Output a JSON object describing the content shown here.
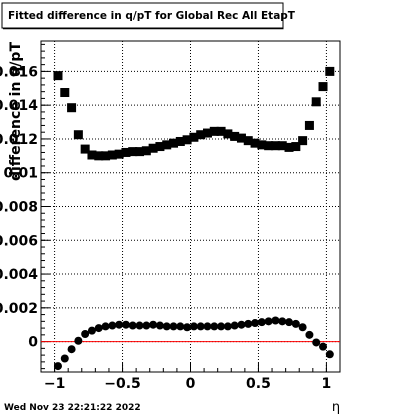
{
  "chart_data": {
    "type": "scatter",
    "title": "Fitted difference in q/pT for Global Rec All EtapT",
    "xlabel": "η",
    "ylabel": "difference in q/pT",
    "timestamp": "Wed Nov 23 22:21:22 2022",
    "xlim": [
      -1.1,
      1.1
    ],
    "ylim": [
      -0.0018,
      0.0178
    ],
    "x_ticks": [
      -1,
      -0.5,
      0,
      0.5,
      1
    ],
    "x_tick_labels": [
      "−1",
      "−0.5",
      "0",
      "0.5",
      "1"
    ],
    "y_ticks": [
      0,
      0.002,
      0.004,
      0.006,
      0.008,
      0.01,
      0.012,
      0.014,
      0.016
    ],
    "y_tick_labels": [
      "0",
      "0.002",
      "0.004",
      "0.006",
      "0.008",
      "0.01",
      "0.012",
      "0.014",
      "0.016"
    ],
    "grid": true,
    "reference_line": {
      "y": 0,
      "color": "#ff0000"
    },
    "series": [
      {
        "marker": "square",
        "color": "#000000",
        "points": [
          [
            -0.975,
            0.01575
          ],
          [
            -0.925,
            0.01475
          ],
          [
            -0.875,
            0.01385
          ],
          [
            -0.825,
            0.01225
          ],
          [
            -0.775,
            0.0114
          ],
          [
            -0.725,
            0.01105
          ],
          [
            -0.675,
            0.011
          ],
          [
            -0.625,
            0.011
          ],
          [
            -0.575,
            0.01105
          ],
          [
            -0.525,
            0.0111
          ],
          [
            -0.475,
            0.0112
          ],
          [
            -0.425,
            0.01125
          ],
          [
            -0.375,
            0.01125
          ],
          [
            -0.325,
            0.0113
          ],
          [
            -0.275,
            0.01145
          ],
          [
            -0.225,
            0.01155
          ],
          [
            -0.175,
            0.01165
          ],
          [
            -0.125,
            0.01175
          ],
          [
            -0.075,
            0.01185
          ],
          [
            -0.025,
            0.01195
          ],
          [
            0.025,
            0.0121
          ],
          [
            0.075,
            0.01225
          ],
          [
            0.125,
            0.01235
          ],
          [
            0.175,
            0.01245
          ],
          [
            0.225,
            0.01245
          ],
          [
            0.275,
            0.0123
          ],
          [
            0.325,
            0.01215
          ],
          [
            0.375,
            0.01205
          ],
          [
            0.425,
            0.0119
          ],
          [
            0.475,
            0.01175
          ],
          [
            0.525,
            0.01165
          ],
          [
            0.575,
            0.0116
          ],
          [
            0.625,
            0.0116
          ],
          [
            0.675,
            0.0116
          ],
          [
            0.725,
            0.0115
          ],
          [
            0.775,
            0.01155
          ],
          [
            0.825,
            0.0119
          ],
          [
            0.875,
            0.0128
          ],
          [
            0.925,
            0.0142
          ],
          [
            0.975,
            0.0151
          ],
          [
            1.025,
            0.016
          ]
        ]
      },
      {
        "marker": "circle",
        "color": "#000000",
        "points": [
          [
            -0.975,
            -0.00145
          ],
          [
            -0.925,
            -0.001
          ],
          [
            -0.875,
            -0.00045
          ],
          [
            -0.825,
            5e-05
          ],
          [
            -0.775,
            0.00045
          ],
          [
            -0.725,
            0.00065
          ],
          [
            -0.675,
            0.0008
          ],
          [
            -0.625,
            0.0009
          ],
          [
            -0.575,
            0.00095
          ],
          [
            -0.525,
            0.001
          ],
          [
            -0.475,
            0.001
          ],
          [
            -0.425,
            0.00095
          ],
          [
            -0.375,
            0.00095
          ],
          [
            -0.325,
            0.00095
          ],
          [
            -0.275,
            0.001
          ],
          [
            -0.225,
            0.00095
          ],
          [
            -0.175,
            0.0009
          ],
          [
            -0.125,
            0.0009
          ],
          [
            -0.075,
            0.0009
          ],
          [
            -0.025,
            0.00085
          ],
          [
            0.025,
            0.0009
          ],
          [
            0.075,
            0.0009
          ],
          [
            0.125,
            0.0009
          ],
          [
            0.175,
            0.0009
          ],
          [
            0.225,
            0.0009
          ],
          [
            0.275,
            0.0009
          ],
          [
            0.325,
            0.00095
          ],
          [
            0.375,
            0.001
          ],
          [
            0.425,
            0.00105
          ],
          [
            0.475,
            0.0011
          ],
          [
            0.525,
            0.00115
          ],
          [
            0.575,
            0.0012
          ],
          [
            0.625,
            0.00125
          ],
          [
            0.675,
            0.0012
          ],
          [
            0.725,
            0.00115
          ],
          [
            0.775,
            0.00105
          ],
          [
            0.825,
            0.00085
          ],
          [
            0.875,
            0.0004
          ],
          [
            0.925,
            -5e-05
          ],
          [
            0.975,
            -0.0003
          ],
          [
            1.025,
            -0.00075
          ]
        ]
      }
    ]
  }
}
